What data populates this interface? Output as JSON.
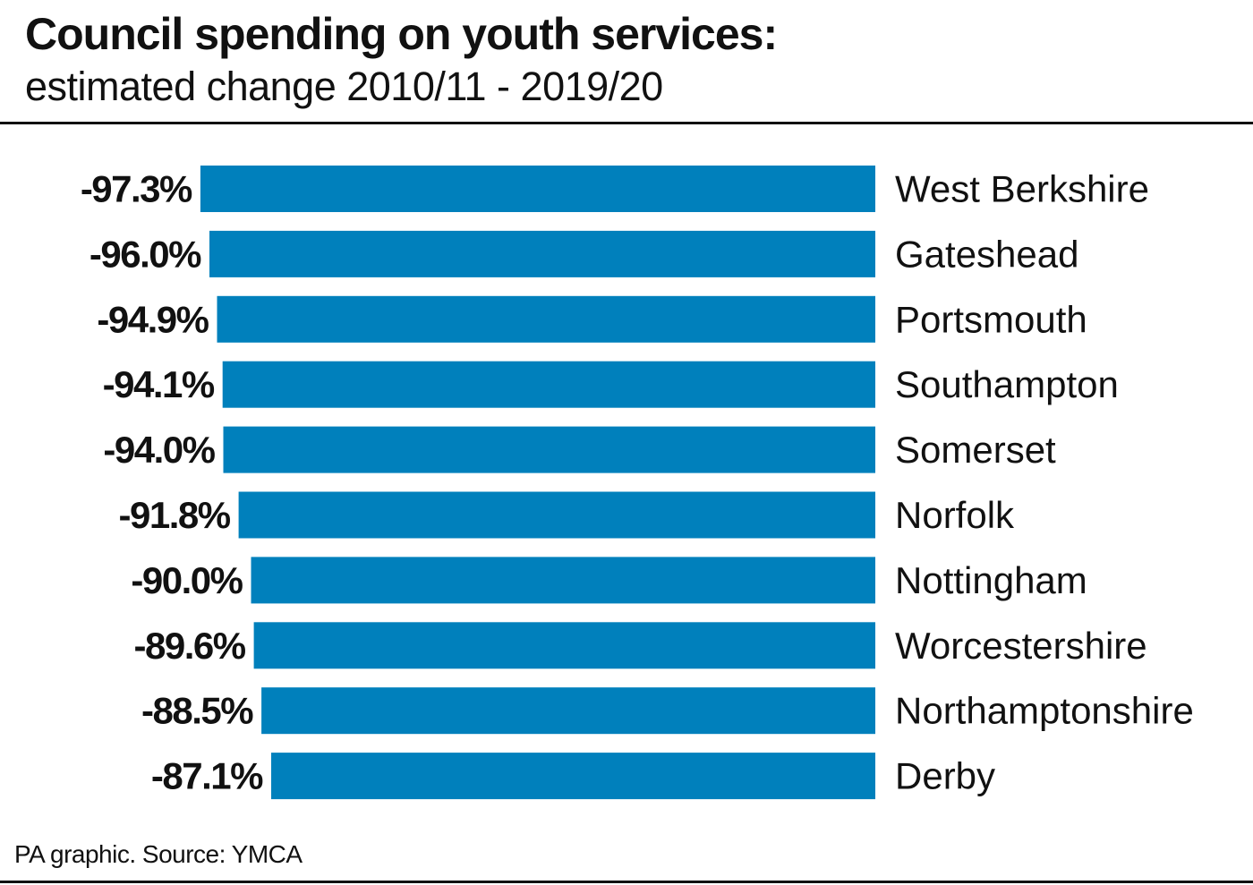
{
  "header": {
    "title": "Council spending on youth services:",
    "subtitle": "estimated change 2010/11 - 2019/20"
  },
  "footer": {
    "source": "PA graphic. Source: YMCA"
  },
  "colors": {
    "bar": "#0080bc",
    "text": "#111111",
    "rule": "#111111"
  },
  "chart_data": {
    "type": "bar",
    "orientation": "horizontal",
    "title": "Council spending on youth services:",
    "subtitle": "estimated change 2010/11 - 2019/20",
    "categories": [
      "West Berkshire",
      "Gateshead",
      "Portsmouth",
      "Southampton",
      "Somerset",
      "Norfolk",
      "Nottingham",
      "Worcestershire",
      "Northamptonshire",
      "Derby"
    ],
    "values": [
      -97.3,
      -96.0,
      -94.9,
      -94.1,
      -94.0,
      -91.8,
      -90.0,
      -89.6,
      -88.5,
      -87.1
    ],
    "value_labels": [
      "-97.3%",
      "-96.0%",
      "-94.9%",
      "-94.1%",
      "-94.0%",
      "-91.8%",
      "-90.0%",
      "-89.6%",
      "-88.5%",
      "-87.1%"
    ],
    "xlabel": "",
    "ylabel": "",
    "grid": false,
    "legend": "none"
  }
}
